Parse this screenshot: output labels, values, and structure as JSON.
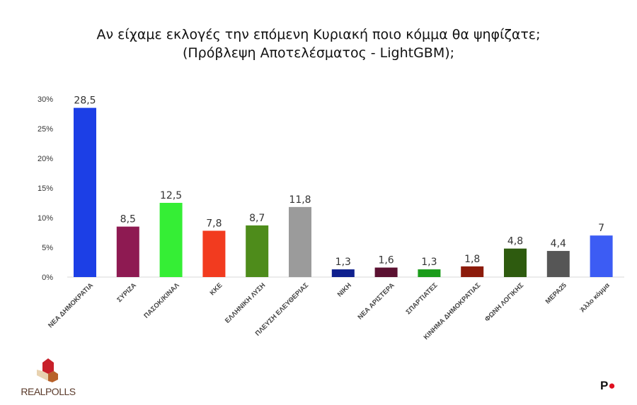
{
  "title_line1": "Αν είχαμε εκλογές την επόμενη Κυριακή ποιο κόμμα θα ψηφίζατε;",
  "title_line2": "(Πρόβλεψη Αποτελέσματος - LightGBM);",
  "chart_data": {
    "type": "bar",
    "title": "Αν είχαμε εκλογές την επόμενη Κυριακή ποιο κόμμα θα ψηφίζατε; (Πρόβλεψη Αποτελέσματος - LightGBM);",
    "categories": [
      "ΝΕΑ ΔΗΜΟΚΡΑΤΙΑ",
      "ΣΥΡΙΖΑ",
      "ΠΑΣΟΚ/ΚΙΝΑΛ",
      "ΚΚΕ",
      "ΕΛΛΗΝΙΚΗ ΛΥΣΗ",
      "ΠΛΕΥΣΗ ΕΛΕΥΘΕΡΙΑΣ",
      "ΝΙΚΗ",
      "ΝΕΑ ΑΡΙΣΤΕΡΑ",
      "ΣΠΑΡΤΙΑΤΕΣ",
      "ΚΙΝΗΜΑ ΔΗΜΟΚΡΑΤΙΑΣ",
      "ΦΩΝΗ ΛΟΓΙΚΗΣ",
      "ΜΕΡΑ25",
      "Άλλο κόμμα"
    ],
    "values": [
      28.5,
      8.5,
      12.5,
      7.8,
      8.7,
      11.8,
      1.3,
      1.6,
      1.3,
      1.8,
      4.8,
      4.4,
      7
    ],
    "value_labels": [
      "28,5",
      "8,5",
      "12,5",
      "7,8",
      "8,7",
      "11,8",
      "1,3",
      "1,6",
      "1,3",
      "1,8",
      "4,8",
      "4,4",
      "7"
    ],
    "colors": [
      "#1c3fe6",
      "#8e1a52",
      "#35ee35",
      "#f23b1f",
      "#4e8c1b",
      "#9b9b9b",
      "#0f208e",
      "#5b1131",
      "#1b9c1b",
      "#8c1b0b",
      "#2e5b0f",
      "#565656",
      "#3c5cf4"
    ],
    "yticks": [
      "0%",
      "5%",
      "10%",
      "15%",
      "20%",
      "25%",
      "30%"
    ],
    "ylim": [
      0,
      30
    ],
    "grid": false,
    "xlabel": "",
    "ylabel": ""
  },
  "logo_text": "REALPOLLS",
  "brand_mark": "P"
}
